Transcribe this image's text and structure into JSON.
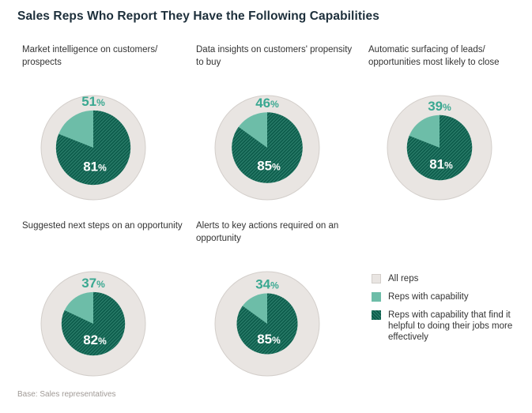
{
  "title": "Sales Reps Who Report They Have the Following Capabilities",
  "base_note": "Base: Sales representatives",
  "colors": {
    "all_reps": "#e9e5e2",
    "all_reps_border": "#d3ceca",
    "capability": "#6dbda8",
    "helpful": "#0b5a49",
    "helpful_stripe": "#2a7d6a",
    "capability_text": "#3aa891",
    "helpful_text": "#ffffff"
  },
  "legend": [
    {
      "key": "all",
      "label": "All reps"
    },
    {
      "key": "cap",
      "label": "Reps with capability"
    },
    {
      "key": "helpful",
      "label": "Reps with capability that find it helpful to doing their jobs more effectively"
    }
  ],
  "chart_data": [
    {
      "type": "pie",
      "label": "Market intelligence on customers/ prospects",
      "with_capability": 51,
      "find_helpful": 81,
      "unit": "%"
    },
    {
      "type": "pie",
      "label": "Data insights on customers' propensity to buy",
      "with_capability": 46,
      "find_helpful": 85,
      "unit": "%"
    },
    {
      "type": "pie",
      "label": "Automatic surfacing of leads/ opportunities most likely to close",
      "with_capability": 39,
      "find_helpful": 81,
      "unit": "%"
    },
    {
      "type": "pie",
      "label": "Suggested next steps on an opportunity",
      "with_capability": 37,
      "find_helpful": 82,
      "unit": "%"
    },
    {
      "type": "pie",
      "label": "Alerts to key actions required on an opportunity",
      "with_capability": 34,
      "find_helpful": 85,
      "unit": "%"
    }
  ]
}
